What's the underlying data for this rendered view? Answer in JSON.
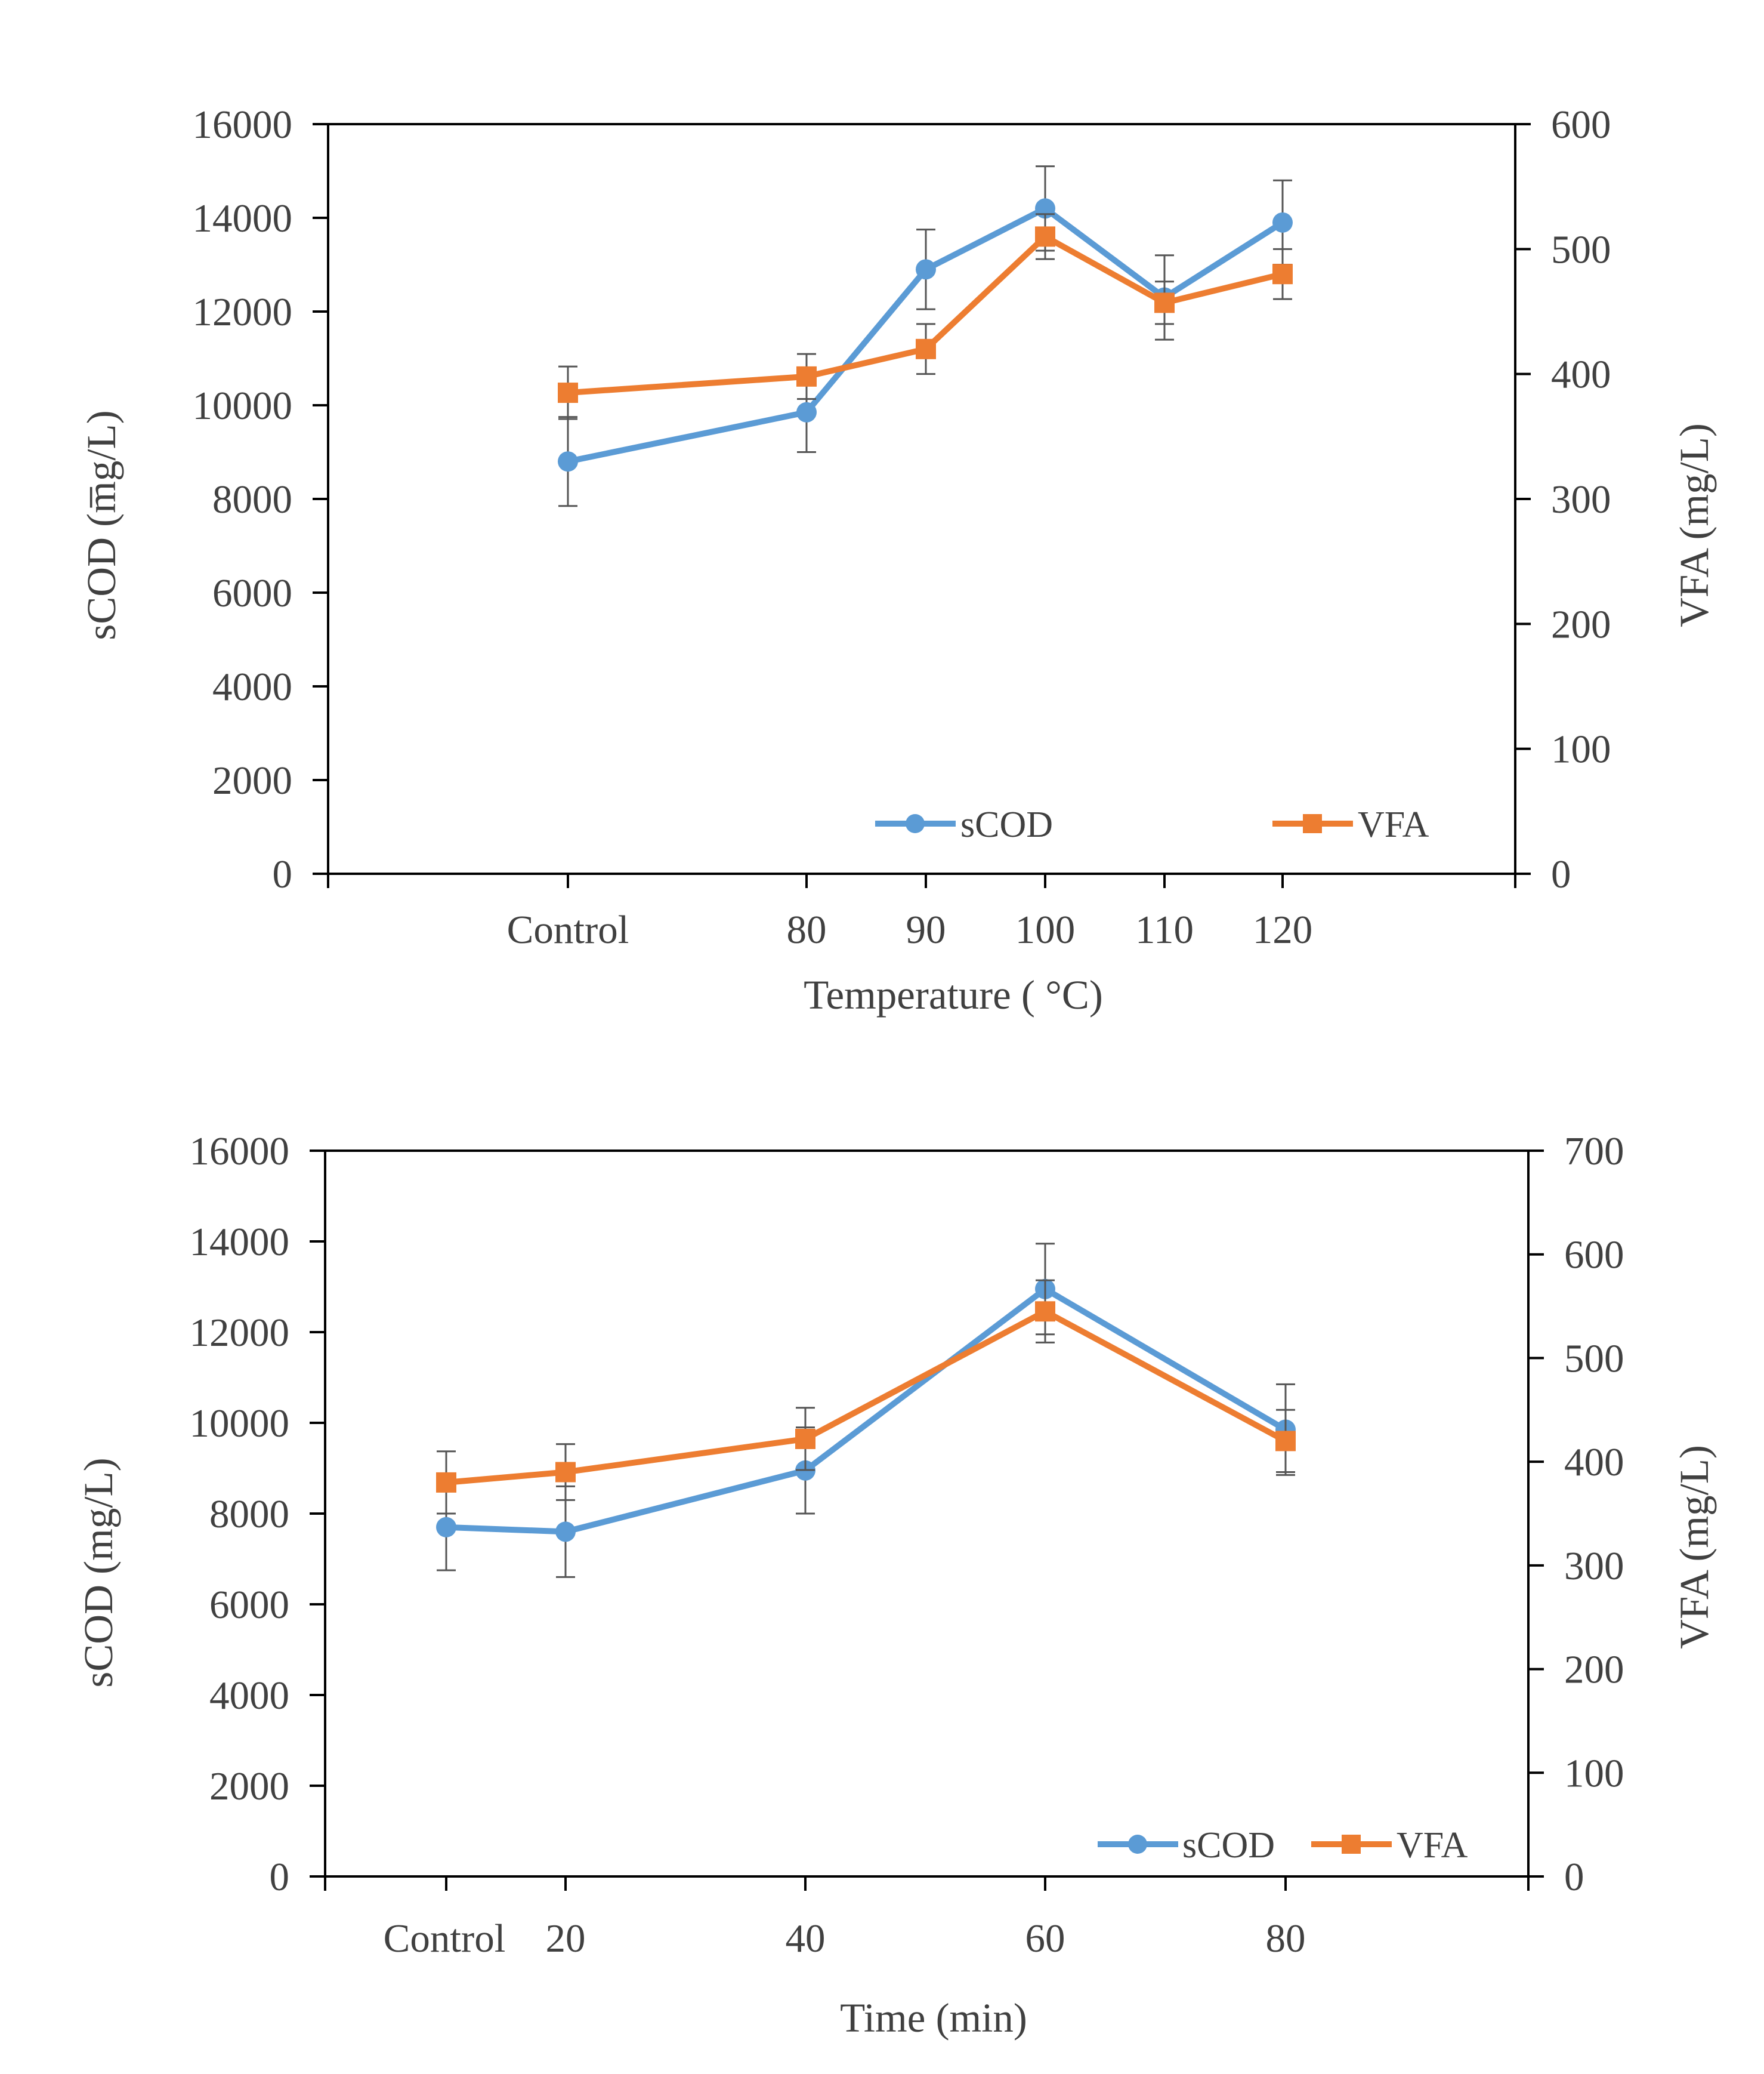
{
  "chart_data": [
    {
      "type": "line",
      "xlabel": "Temperature ( °C)",
      "ylabel": "sCOD (m̅g/L)",
      "y2label": "VFA (mg/L)",
      "categories": [
        "Control",
        "80",
        "90",
        "100",
        "110",
        "120"
      ],
      "ylim": [
        0,
        16000
      ],
      "y2lim": [
        0,
        600
      ],
      "yticks": [
        "0",
        "2000",
        "4000",
        "6000",
        "8000",
        "10000",
        "12000",
        "14000",
        "16000"
      ],
      "y2ticks": [
        "0",
        "100",
        "200",
        "300",
        "400",
        "500",
        "600"
      ],
      "legend_position": "bottom-right",
      "series": [
        {
          "name": "sCOD",
          "axis": "left",
          "color": "#5b9bd5",
          "marker": "circle",
          "values": [
            8800,
            9850,
            12900,
            14200,
            12300,
            13900
          ],
          "errors": [
            950,
            850,
            850,
            900,
            900,
            900
          ]
        },
        {
          "name": "VFA",
          "axis": "right",
          "color": "#ed7d31",
          "marker": "square",
          "values": [
            385,
            398,
            420,
            510,
            457,
            480
          ],
          "errors": [
            21,
            18,
            20,
            18,
            17,
            20
          ]
        }
      ]
    },
    {
      "type": "line",
      "xlabel": "Time  (min)",
      "ylabel": "sCOD (mg/L)",
      "y2label": "VFA (mg/L)",
      "categories": [
        "Control",
        "20",
        "40",
        "60",
        "80"
      ],
      "ylim": [
        0,
        16000
      ],
      "y2lim": [
        0,
        700
      ],
      "yticks": [
        "0",
        "2000",
        "4000",
        "6000",
        "8000",
        "10000",
        "12000",
        "14000",
        "16000"
      ],
      "y2ticks": [
        "0",
        "100",
        "200",
        "300",
        "400",
        "500",
        "600",
        "700"
      ],
      "legend_position": "bottom-right",
      "series": [
        {
          "name": "sCOD",
          "axis": "left",
          "color": "#5b9bd5",
          "marker": "circle",
          "values": [
            7700,
            7600,
            8950,
            12950,
            9850
          ],
          "errors": [
            950,
            1000,
            950,
            1000,
            1000
          ]
        },
        {
          "name": "VFA",
          "axis": "right",
          "color": "#ed7d31",
          "marker": "square",
          "values": [
            380,
            390,
            422,
            545,
            420
          ],
          "errors": [
            30,
            27,
            30,
            30,
            30
          ]
        }
      ]
    }
  ]
}
